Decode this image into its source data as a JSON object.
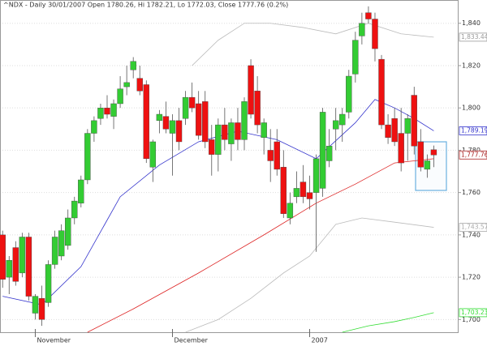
{
  "chart_data": {
    "type": "candlestick",
    "title": "^NDX - Daily 30/01/2007 Open 1780.26, Hi 1782.21, Lo 1772.03, Close 1777.76 (0.2%)",
    "open": [
      1740,
      1720,
      1734,
      1722,
      1739,
      1703,
      1710,
      1708,
      1726,
      1730,
      1735,
      1748,
      1755,
      1766,
      1788,
      1795,
      1800,
      1796,
      1802,
      1810,
      1818,
      1814,
      1811,
      1772,
      1794,
      1796,
      1788,
      1794,
      1795,
      1805,
      1802,
      1803,
      1785,
      1778,
      1792,
      1783,
      1793,
      1785,
      1820,
      1808,
      1786,
      1780,
      1784,
      1772,
      1748,
      1758,
      1765,
      1760,
      1760,
      1762,
      1775,
      1790,
      1792,
      1798,
      1816,
      1834,
      1845,
      1842,
      1823,
      1792,
      1795,
      1788,
      1788,
      1806,
      1784,
      1771,
      1780.26
    ],
    "high": [
      1742,
      1730,
      1737,
      1741,
      1741,
      1712,
      1716,
      1728,
      1742,
      1745,
      1752,
      1758,
      1768,
      1790,
      1796,
      1802,
      1806,
      1804,
      1815,
      1820,
      1824,
      1820,
      1813,
      1785,
      1799,
      1803,
      1797,
      1800,
      1808,
      1812,
      1808,
      1808,
      1792,
      1795,
      1800,
      1795,
      1800,
      1805,
      1823,
      1815,
      1795,
      1790,
      1790,
      1780,
      1760,
      1770,
      1773,
      1768,
      1778,
      1800,
      1790,
      1800,
      1800,
      1818,
      1836,
      1845,
      1848,
      1845,
      1825,
      1797,
      1800,
      1800,
      1797,
      1810,
      1790,
      1778,
      1782.21
    ],
    "low": [
      1715,
      1712,
      1716,
      1720,
      1709,
      1700,
      1697,
      1706,
      1724,
      1728,
      1733,
      1745,
      1753,
      1764,
      1784,
      1792,
      1795,
      1790,
      1800,
      1806,
      1814,
      1806,
      1774,
      1765,
      1788,
      1788,
      1768,
      1780,
      1792,
      1798,
      1785,
      1781,
      1768,
      1770,
      1780,
      1775,
      1780,
      1780,
      1795,
      1788,
      1778,
      1765,
      1768,
      1748,
      1745,
      1755,
      1755,
      1752,
      1732,
      1758,
      1772,
      1780,
      1784,
      1795,
      1812,
      1830,
      1840,
      1822,
      1790,
      1783,
      1782,
      1770,
      1775,
      1778,
      1770,
      1767,
      1772.03
    ],
    "close": [
      1719,
      1728,
      1718,
      1739,
      1711,
      1711,
      1700,
      1726,
      1739,
      1742,
      1748,
      1756,
      1766,
      1788,
      1794,
      1800,
      1797,
      1802,
      1809,
      1812,
      1822,
      1808,
      1776,
      1784,
      1797,
      1790,
      1794,
      1784,
      1805,
      1800,
      1787,
      1784,
      1778,
      1792,
      1785,
      1793,
      1785,
      1803,
      1797,
      1792,
      1793,
      1775,
      1771,
      1750,
      1755,
      1762,
      1758,
      1757,
      1776,
      1798,
      1782,
      1794,
      1797,
      1815,
      1832,
      1840,
      1842,
      1828,
      1792,
      1786,
      1784,
      1774,
      1795,
      1782,
      1772,
      1775,
      1777.76
    ],
    "up_color": "#33cc33",
    "down_color": "#ee1111",
    "lines": [
      {
        "color": "#3333cc",
        "x": [
          0,
          6,
          12,
          18,
          24,
          30,
          36,
          42,
          48,
          54,
          57,
          60,
          63,
          66
        ],
        "values": [
          1711,
          1707,
          1725,
          1758,
          1773,
          1784,
          1789,
          1785,
          1776,
          1793,
          1804,
          1800,
          1795,
          1789.19
        ]
      },
      {
        "color": "#dd2222",
        "x": [
          13,
          20,
          30,
          40,
          48,
          54,
          60,
          66
        ],
        "values": [
          1694,
          1705,
          1722,
          1740,
          1755,
          1764,
          1774,
          1776
        ]
      },
      {
        "color": "#bbbbbb",
        "x": [
          29,
          33,
          37,
          41,
          46,
          51,
          56,
          61,
          66
        ],
        "values": [
          1820,
          1832,
          1840,
          1840,
          1838,
          1835,
          1840,
          1835,
          1833.44
        ]
      },
      {
        "color": "#bbbbbb",
        "x": [
          28,
          33,
          38,
          43,
          47,
          51,
          55,
          60,
          66
        ],
        "values": [
          1694,
          1700,
          1710,
          1722,
          1730,
          1745,
          1748,
          1746,
          1743.57
        ]
      },
      {
        "color": "#33dd33",
        "x": [
          52,
          56,
          60,
          63,
          66
        ],
        "values": [
          1694,
          1697,
          1699,
          1701,
          1703.23
        ]
      }
    ],
    "price_labels": [
      {
        "value": 1833.44,
        "label": "1,833.44",
        "color": "#999999"
      },
      {
        "value": 1789.19,
        "label": "1,789.19",
        "color": "#3333cc"
      },
      {
        "value": 1777.76,
        "label": "1,777.76",
        "color": "#aa2222"
      },
      {
        "value": 1743.57,
        "label": "1,743.57",
        "color": "#aaaaaa"
      },
      {
        "value": 1703.23,
        "label": "1,703.23",
        "color": "#33dd33"
      }
    ],
    "ylim": [
      1694,
      1851
    ],
    "yticks": [
      {
        "value": 1700,
        "label": "1,700"
      },
      {
        "value": 1720,
        "label": "1,720"
      },
      {
        "value": 1740,
        "label": "1,740"
      },
      {
        "value": 1760,
        "label": "1,760"
      },
      {
        "value": 1780,
        "label": "1,780"
      },
      {
        "value": 1800,
        "label": "1,800"
      },
      {
        "value": 1820,
        "label": "1,820"
      },
      {
        "value": 1840,
        "label": "1,840"
      }
    ],
    "xlim": [
      -0.4,
      69.8
    ],
    "xticks": [
      {
        "value": 5,
        "label": "November"
      },
      {
        "value": 26,
        "label": "December"
      },
      {
        "value": 47,
        "label": "2007"
      }
    ],
    "grid": true
  }
}
